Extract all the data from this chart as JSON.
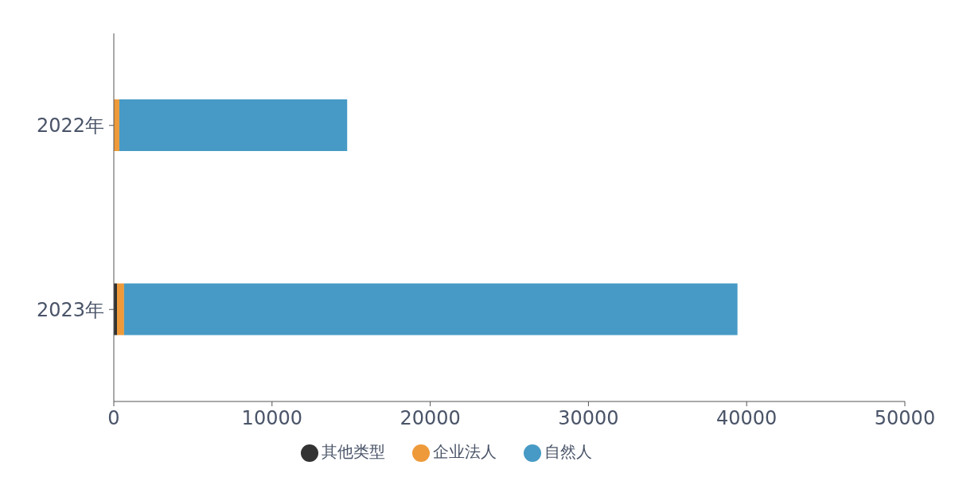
{
  "chart_data": {
    "type": "bar",
    "orientation": "horizontal",
    "stacked": true,
    "categories": [
      "2022年",
      "2023年"
    ],
    "series": [
      {
        "name": "其他类型",
        "color": "#333333",
        "values": [
          0,
          200
        ]
      },
      {
        "name": "企业法人",
        "color": "#ee9a3a",
        "values": [
          350,
          450
        ]
      },
      {
        "name": "自然人",
        "color": "#479ac5",
        "values": [
          14400,
          38770
        ]
      }
    ],
    "xlim": [
      0,
      50000
    ],
    "xticks": [
      0,
      10000,
      20000,
      30000,
      40000,
      50000
    ],
    "grid": false,
    "legend": "bottom"
  }
}
